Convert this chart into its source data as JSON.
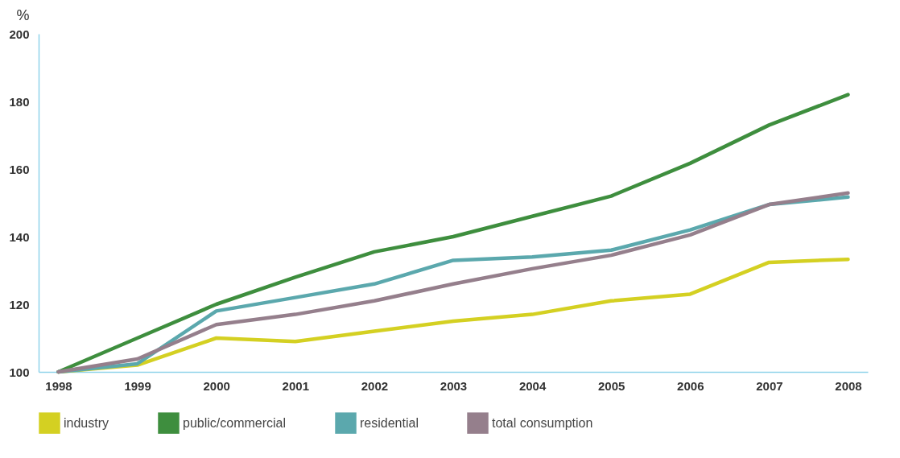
{
  "chart_data": {
    "type": "line",
    "ylabel": "%",
    "categories": [
      "1998",
      "1999",
      "2000",
      "2001",
      "2002",
      "2003",
      "2004",
      "2005",
      "2006",
      "2007",
      "2008"
    ],
    "ylim": [
      100,
      200
    ],
    "yticks": [
      100,
      120,
      140,
      160,
      180,
      200
    ],
    "grid": false,
    "legend": "bottom",
    "marker": "none",
    "line_style": "solid",
    "series": [
      {
        "name": "industry",
        "color": "#d4d022",
        "values": [
          100,
          102,
          110,
          109,
          112,
          115,
          117,
          121,
          123,
          132.4,
          133.3
        ]
      },
      {
        "name": "public/commercial",
        "color": "#3e8e3e",
        "values": [
          100,
          110,
          120,
          128,
          135.5,
          140,
          146,
          152,
          161.7,
          173,
          182
        ]
      },
      {
        "name": "residential",
        "color": "#5ba8ad",
        "values": [
          100,
          102.4,
          118,
          122,
          126,
          133,
          134,
          136,
          142,
          149.5,
          151.7
        ]
      },
      {
        "name": "total consumption",
        "color": "#957f8c",
        "values": [
          100,
          103.8,
          114,
          117,
          121,
          126,
          130.5,
          134.5,
          140.5,
          149.5,
          152.9
        ]
      }
    ]
  }
}
